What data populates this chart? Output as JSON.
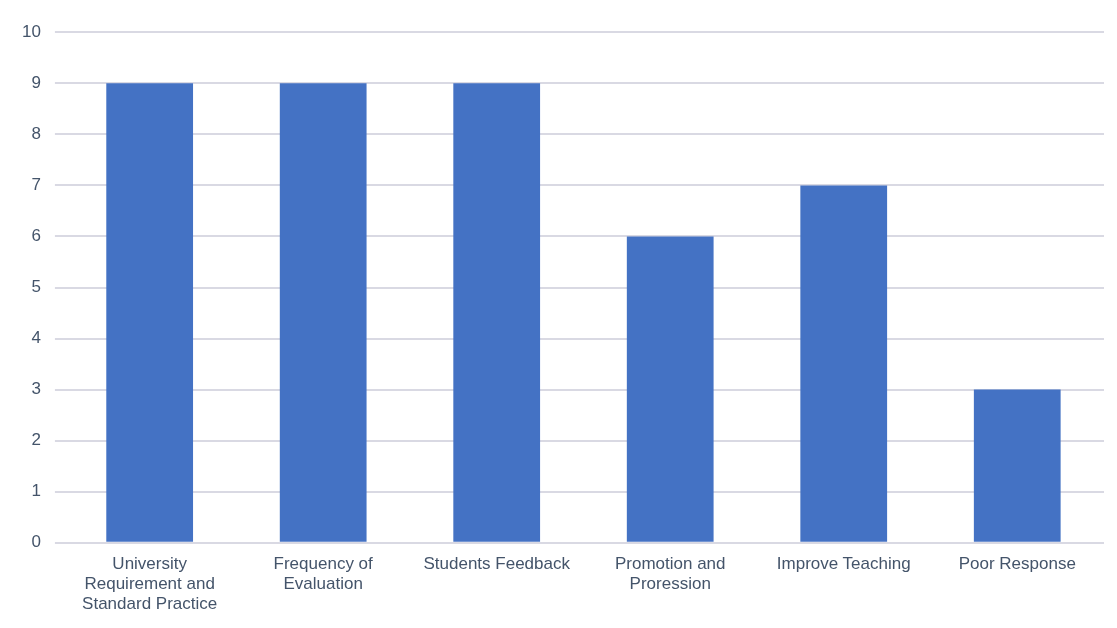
{
  "chart_data": {
    "type": "bar",
    "categories": [
      "University Requirement and Standard Practice",
      "Frequency of Evaluation",
      "Students Feedback",
      "Promotion and Proression",
      "Improve Teaching",
      "Poor Response"
    ],
    "values": [
      9,
      9,
      9,
      6,
      7,
      3
    ],
    "color": "#4472c4",
    "ylim": [
      0,
      10
    ],
    "yticks": [
      0,
      1,
      2,
      3,
      4,
      5,
      6,
      7,
      8,
      9,
      10
    ],
    "grid": "y"
  }
}
